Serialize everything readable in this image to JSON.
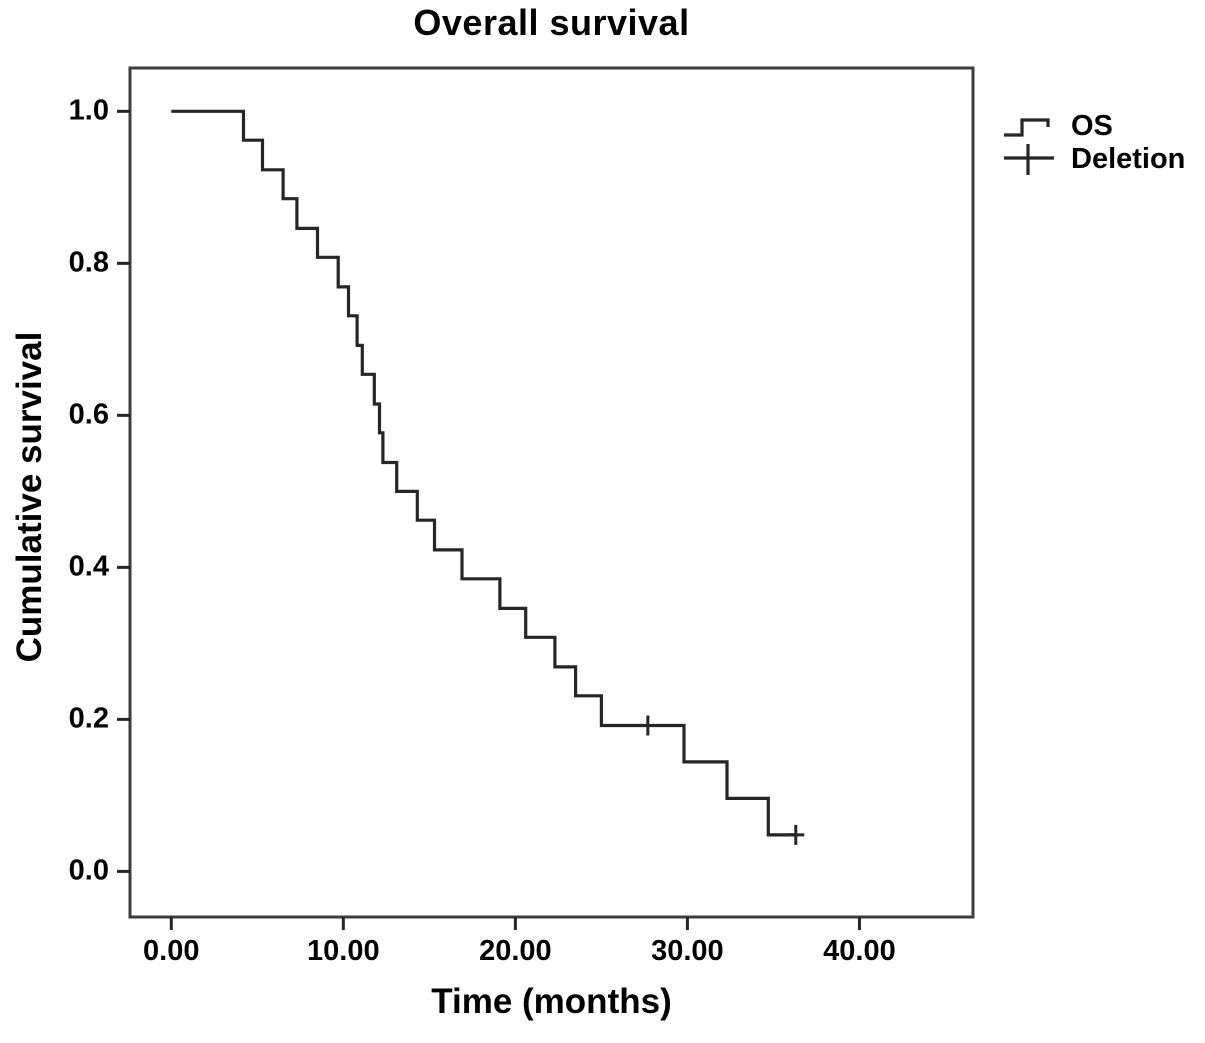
{
  "chart_data": {
    "type": "line",
    "subtype": "kaplan-meier-step",
    "title": "Overall survival",
    "xlabel": "Time (months)",
    "ylabel": "Cumulative survival",
    "grid": false,
    "line_color": "#262626",
    "frame_color": "#3d3d3d",
    "background_color": "#ffffff",
    "xlim": [
      -2.4,
      46.6
    ],
    "ylim": [
      -0.06,
      1.057
    ],
    "x_ticks": [
      {
        "value": 0,
        "label": "0.00"
      },
      {
        "value": 10,
        "label": "10.00"
      },
      {
        "value": 20,
        "label": "20.00"
      },
      {
        "value": 30,
        "label": "30.00"
      },
      {
        "value": 40,
        "label": "40.00"
      }
    ],
    "y_ticks": [
      {
        "value": 0.0,
        "label": "0.0"
      },
      {
        "value": 0.2,
        "label": "0.2"
      },
      {
        "value": 0.4,
        "label": "0.4"
      },
      {
        "value": 0.6,
        "label": "0.6"
      },
      {
        "value": 0.8,
        "label": "0.8"
      },
      {
        "value": 1.0,
        "label": "1.0"
      }
    ],
    "legend": [
      {
        "label": "OS",
        "symbol": "step-line-icon"
      },
      {
        "label": "Deletion",
        "symbol": "plus-icon"
      }
    ],
    "legend_position": "upper-right-outside",
    "series": [
      {
        "name": "OS",
        "start": {
          "t": 0.0,
          "s": 1.0
        },
        "steps": [
          {
            "t": 4.2,
            "s": 0.962
          },
          {
            "t": 5.3,
            "s": 0.923
          },
          {
            "t": 6.5,
            "s": 0.885
          },
          {
            "t": 7.3,
            "s": 0.846
          },
          {
            "t": 8.5,
            "s": 0.808
          },
          {
            "t": 9.7,
            "s": 0.769
          },
          {
            "t": 10.3,
            "s": 0.731
          },
          {
            "t": 10.8,
            "s": 0.692
          },
          {
            "t": 11.1,
            "s": 0.654
          },
          {
            "t": 11.8,
            "s": 0.615
          },
          {
            "t": 12.1,
            "s": 0.577
          },
          {
            "t": 12.3,
            "s": 0.538
          },
          {
            "t": 13.1,
            "s": 0.5
          },
          {
            "t": 14.3,
            "s": 0.462
          },
          {
            "t": 15.3,
            "s": 0.423
          },
          {
            "t": 16.9,
            "s": 0.385
          },
          {
            "t": 19.1,
            "s": 0.346
          },
          {
            "t": 20.6,
            "s": 0.308
          },
          {
            "t": 22.3,
            "s": 0.269
          },
          {
            "t": 23.5,
            "s": 0.231
          },
          {
            "t": 25.0,
            "s": 0.192
          },
          {
            "t": 29.8,
            "s": 0.144
          },
          {
            "t": 32.3,
            "s": 0.096
          },
          {
            "t": 34.7,
            "s": 0.048
          }
        ],
        "censored": [
          {
            "t": 27.7,
            "s": 0.192
          },
          {
            "t": 36.3,
            "s": 0.048
          }
        ],
        "end_t": 36.3
      }
    ]
  }
}
